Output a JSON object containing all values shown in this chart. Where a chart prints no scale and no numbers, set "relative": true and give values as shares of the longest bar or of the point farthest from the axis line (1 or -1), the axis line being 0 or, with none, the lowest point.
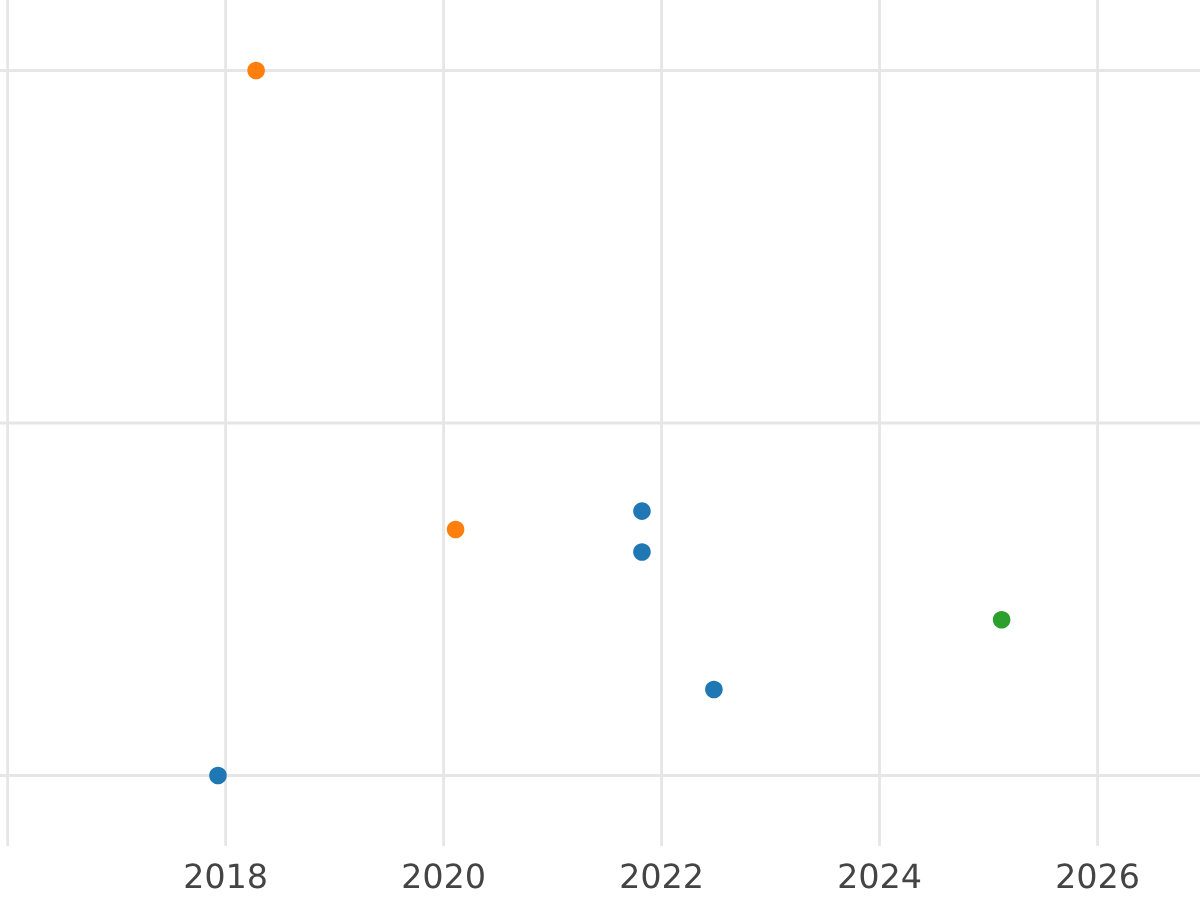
{
  "chart_data": {
    "type": "scatter",
    "relative": true,
    "series": [
      {
        "color": "#1f77b4",
        "x": [
          2017.93,
          2021.82,
          2021.82,
          2022.48
        ],
        "values": [
          0,
          0.375,
          0.317,
          0.122
        ]
      },
      {
        "color": "#ff7f0e",
        "x": [
          2018.28,
          2020.11
        ],
        "values": [
          1,
          0.349
        ]
      },
      {
        "color": "#2ca02c",
        "x": [
          2025.12
        ],
        "values": [
          0.221
        ]
      }
    ],
    "xlim": [
      2015.93,
      2026.94
    ],
    "xticks": [
      {
        "value": 2016,
        "label": null
      },
      2018,
      2020,
      2022,
      2024,
      2026
    ],
    "grid": true,
    "marker": "circle",
    "tick_labels": "x"
  }
}
